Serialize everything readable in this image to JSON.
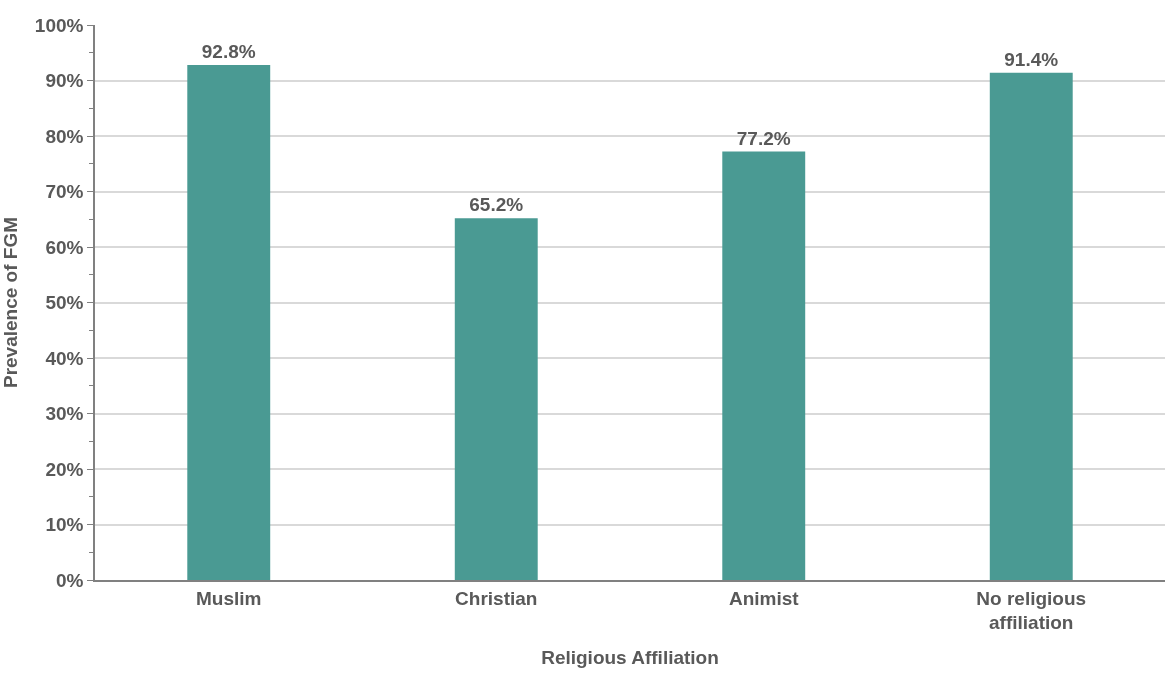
{
  "chart_data": {
    "type": "bar",
    "xlabel": "Religious Affiliation",
    "ylabel": "Prevalence of FGM",
    "categories": [
      "Muslim",
      "Christian",
      "Animist",
      "No religious affiliation"
    ],
    "values": [
      92.8,
      65.2,
      77.2,
      91.4
    ],
    "color": "#4a9a93",
    "value_labels": [
      "92.8%",
      "65.2%",
      "77.2%",
      "91.4%"
    ],
    "ylim": [
      0,
      100
    ],
    "yticks": [
      {
        "value": 0,
        "label": "0%"
      },
      {
        "value": 5,
        "label": null
      },
      {
        "value": 10,
        "label": "10%"
      },
      {
        "value": 15,
        "label": null
      },
      {
        "value": 20,
        "label": "20%"
      },
      {
        "value": 25,
        "label": null
      },
      {
        "value": 30,
        "label": "30%"
      },
      {
        "value": 35,
        "label": null
      },
      {
        "value": 40,
        "label": "40%"
      },
      {
        "value": 45,
        "label": null
      },
      {
        "value": 50,
        "label": "50%"
      },
      {
        "value": 55,
        "label": null
      },
      {
        "value": 60,
        "label": "60%"
      },
      {
        "value": 65,
        "label": null
      },
      {
        "value": 70,
        "label": "70%"
      },
      {
        "value": 75,
        "label": null
      },
      {
        "value": 80,
        "label": "80%"
      },
      {
        "value": 85,
        "label": null
      },
      {
        "value": 90,
        "label": "90%"
      },
      {
        "value": 95,
        "label": null
      },
      {
        "value": 100,
        "label": "100%"
      }
    ],
    "grid": "y"
  }
}
